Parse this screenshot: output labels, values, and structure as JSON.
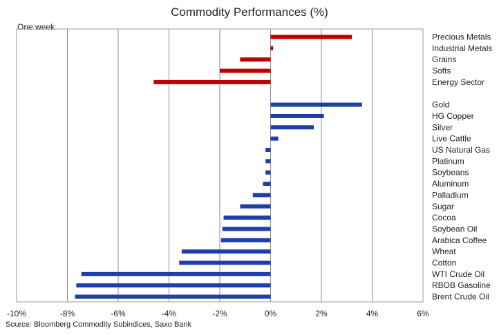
{
  "chart_data": {
    "type": "bar",
    "orientation": "horizontal",
    "title": "Commodity Performances (%)",
    "subtitle": "One week",
    "source": "Source: Bloomberg Commodity Subindices, Saxo Bank",
    "xlim": [
      -10,
      6
    ],
    "xticks": [
      -10,
      -8,
      -6,
      -4,
      -2,
      0,
      2,
      4,
      6
    ],
    "tick_suffix": "%",
    "grid": "vertical",
    "series": [
      {
        "group": "sectors",
        "color": "#c00000",
        "categories": [
          "Precious Metals",
          "Industrial Metals",
          "Grains",
          "Softs",
          "Energy Sector"
        ],
        "values": [
          3.2,
          0.1,
          -1.2,
          -2.0,
          -4.6
        ]
      },
      {
        "group": "individual",
        "color": "#1f3fa8",
        "categories": [
          "Gold",
          "HG Copper",
          "Silver",
          "Live Cattle",
          "US Natural Gas",
          "Platinum",
          "Soybeans",
          "Aluminum",
          "Palladium",
          "Sugar",
          "Cocoa",
          "Soybean Oil",
          "Arabica Coffee",
          "Wheat",
          "Cotton",
          "WTI Crude Oil",
          "RBOB Gasoline",
          "Brent Crude Oil"
        ],
        "values": [
          3.6,
          2.1,
          1.7,
          0.3,
          -0.2,
          -0.2,
          -0.2,
          -0.3,
          -0.7,
          -1.2,
          -1.85,
          -1.9,
          -1.95,
          -3.5,
          -3.6,
          -7.45,
          -7.65,
          -7.7
        ]
      }
    ]
  }
}
